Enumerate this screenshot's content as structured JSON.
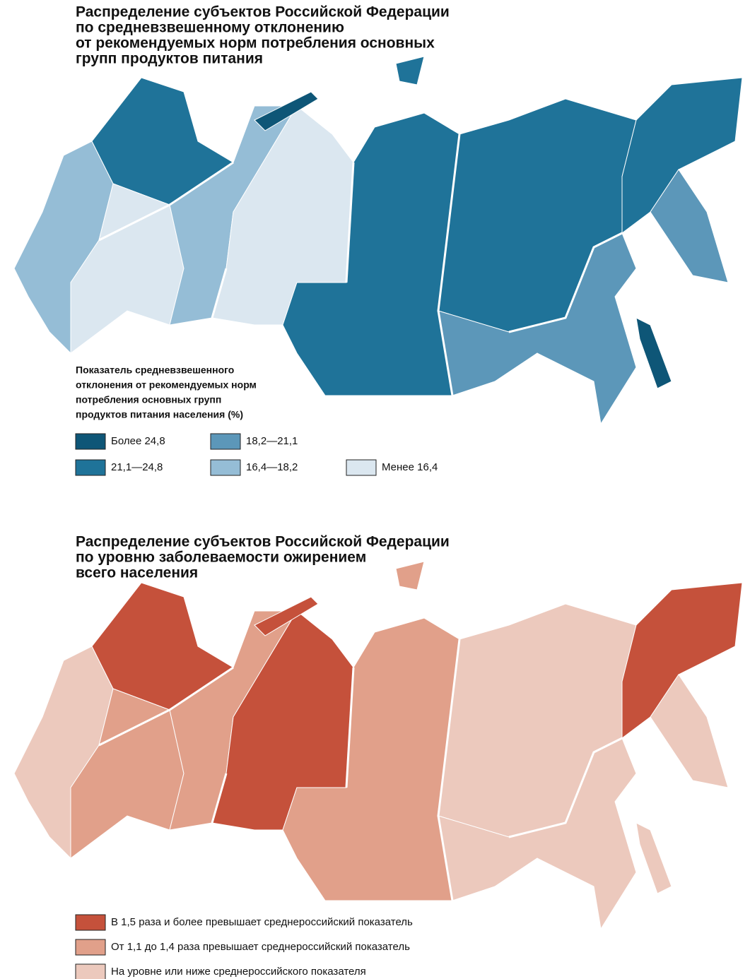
{
  "maps": [
    {
      "title": [
        "Распределение субъектов Российской Федерации",
        "по средневзвешенному отклонению",
        "от рекомендуемых норм потребления основных",
        "групп продуктов питания"
      ],
      "legend": {
        "title": [
          "Показатель средневзвешенного",
          "отклонения от рекомендуемых норм",
          "потребления основных групп",
          "продуктов питания населения (%)"
        ],
        "items": [
          {
            "label": "Более 24,8",
            "color": "#0e5677"
          },
          {
            "label": "21,1—24,8",
            "color": "#1f7399"
          },
          {
            "label": "18,2—21,1",
            "color": "#5c97b9"
          },
          {
            "label": "16,4—18,2",
            "color": "#95bdd6"
          },
          {
            "label": "Менее 16,4",
            "color": "#dbe7f0"
          }
        ]
      }
    },
    {
      "title": [
        "Распределение субъектов Российской Федерации",
        "по уровню заболеваемости ожирением",
        "всего населения"
      ],
      "legend": {
        "items": [
          {
            "label": "В 1,5 раза и более превышает среднероссийский показатель",
            "color": "#c5513b"
          },
          {
            "label": "От 1,1 до 1,4 раза превышает среднероссийский показатель",
            "color": "#e1a08a"
          },
          {
            "label": "На уровне или ниже среднероссийского показателя",
            "color": "#ecc9bd"
          }
        ]
      }
    }
  ]
}
